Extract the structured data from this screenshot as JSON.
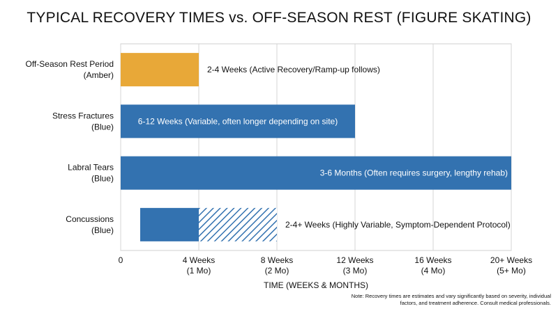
{
  "chart_data": {
    "type": "bar",
    "orientation": "horizontal",
    "title": "TYPICAL RECOVERY TIMES vs. OFF-SEASON REST (FIGURE SKATING)",
    "xlabel": "TIME (WEEKS & MONTHS)",
    "xlim": [
      0,
      20
    ],
    "xticks": [
      {
        "value": 0,
        "label": "0",
        "sublabel": ""
      },
      {
        "value": 4,
        "label": "4 Weeks",
        "sublabel": "(1 Mo)"
      },
      {
        "value": 8,
        "label": "8 Weeks",
        "sublabel": "(2 Mo)"
      },
      {
        "value": 12,
        "label": "12 Weeks",
        "sublabel": "(3 Mo)"
      },
      {
        "value": 16,
        "label": "16 Weeks",
        "sublabel": "(4 Mo)"
      },
      {
        "value": 20,
        "label": "20+ Weeks",
        "sublabel": "(5+ Mo)"
      }
    ],
    "grid": "vertical",
    "categories": [
      {
        "name": "Off-Season Rest Period",
        "tag": "(Amber)",
        "start": 0,
        "end": 4,
        "hatch_start": null,
        "hatch_end": null,
        "color": "#E8A838",
        "annotation": "2-4 Weeks (Active Recovery/Ramp-up follows)",
        "annotation_position": "outside"
      },
      {
        "name": "Stress Fractures",
        "tag": "(Blue)",
        "start": 0,
        "end": 12,
        "hatch_start": null,
        "hatch_end": null,
        "color": "#3372B0",
        "annotation": "6-12 Weeks (Variable, often longer depending on site)",
        "annotation_position": "inside"
      },
      {
        "name": "Labral Tears",
        "tag": "(Blue)",
        "start": 0,
        "end": 20,
        "hatch_start": null,
        "hatch_end": null,
        "color": "#3372B0",
        "annotation": "3-6 Months (Often requires surgery, lengthy rehab)",
        "annotation_position": "inside-right"
      },
      {
        "name": "Concussions",
        "tag": "(Blue)",
        "start": 1,
        "end": 4,
        "hatch_start": 4,
        "hatch_end": 8,
        "color": "#3372B0",
        "annotation": "2-4+ Weeks (Highly Variable, Symptom-Dependent Protocol)",
        "annotation_position": "outside"
      }
    ],
    "note": "Note: Recovery times are estimates and vary significantly based on severity, individual factors, and treatment adherence. Consult medical professionals."
  }
}
